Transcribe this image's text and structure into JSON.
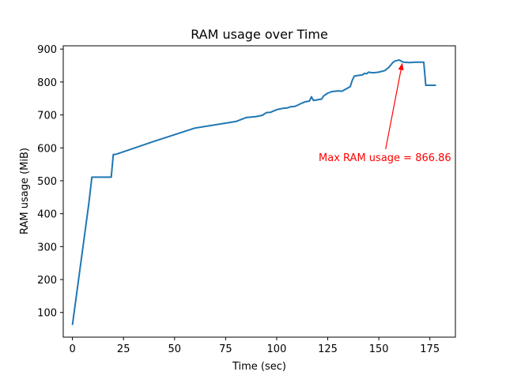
{
  "chart_data": {
    "type": "line",
    "title": "RAM usage over Time",
    "xlabel": "Time (sec)",
    "ylabel": "RAM usage (MiB)",
    "xlim": [
      -4.5,
      187.5
    ],
    "ylim": [
      25,
      910
    ],
    "xticks": [
      0,
      25,
      50,
      75,
      100,
      125,
      150,
      175
    ],
    "yticks": [
      100,
      200,
      300,
      400,
      500,
      600,
      700,
      800,
      900
    ],
    "grid": false,
    "legend": "none",
    "series_color": "#1f77b4",
    "series": [
      {
        "x": [
          0,
          8,
          9.5,
          19,
          20,
          21,
          22,
          40,
          60,
          80,
          85,
          90,
          93,
          95,
          97,
          100,
          103,
          105,
          107,
          109,
          110,
          112,
          114,
          116,
          117,
          118,
          120,
          122,
          123,
          125,
          127,
          130,
          132,
          134,
          136,
          137,
          138,
          140,
          142,
          143,
          144,
          145,
          147,
          150,
          153,
          155,
          157,
          158,
          160,
          162,
          165,
          168,
          172,
          173,
          178
        ],
        "y": [
          62,
          430,
          511,
          511,
          580,
          580,
          582,
          620,
          660,
          680,
          692,
          695,
          699,
          707,
          708,
          716,
          720,
          721,
          725,
          726,
          729,
          735,
          740,
          742,
          755,
          744,
          746,
          748,
          758,
          766,
          771,
          773,
          772,
          779,
          786,
          805,
          818,
          820,
          822,
          826,
          825,
          830,
          828,
          830,
          835,
          845,
          860,
          864,
          866.86,
          860,
          859,
          860,
          860,
          790,
          790
        ]
      }
    ],
    "annotation": {
      "text": "Max RAM usage = 866.86",
      "color": "#ff0000",
      "point_x": 161.5,
      "point_y": 858,
      "text_x": 153,
      "text_y": 572
    }
  }
}
